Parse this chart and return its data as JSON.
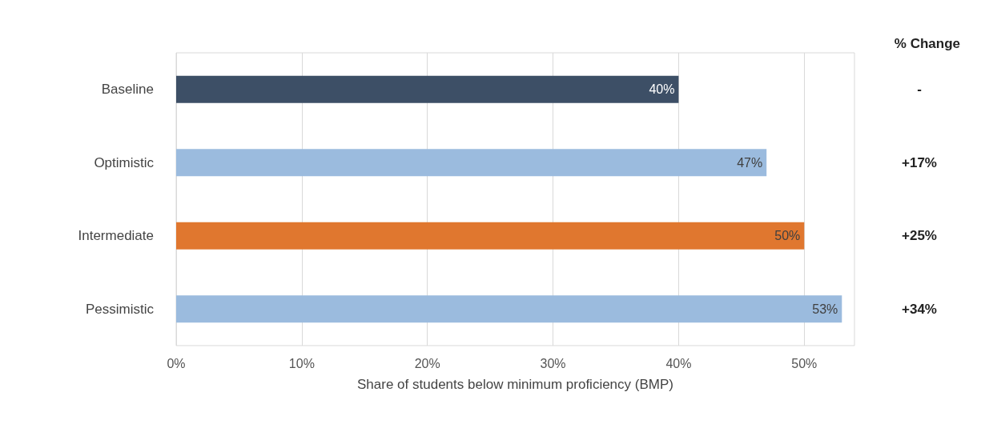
{
  "chart_data": {
    "type": "bar",
    "orientation": "horizontal",
    "categories": [
      "Baseline",
      "Optimistic",
      "Intermediate",
      "Pessimistic"
    ],
    "values": [
      40,
      47,
      50,
      53
    ],
    "colors": [
      "#3d4f66",
      "#9bbbde",
      "#e0772f",
      "#9bbbde"
    ],
    "value_labels": [
      "40%",
      "47%",
      "50%",
      "53%"
    ],
    "xlabel": "Share of students below minimum proficiency (BMP)",
    "xlim": [
      0,
      54
    ],
    "xticks": [
      {
        "value": 0,
        "label": "0%"
      },
      {
        "value": 10,
        "label": "10%"
      },
      {
        "value": 20,
        "label": "20%"
      },
      {
        "value": 30,
        "label": "30%"
      },
      {
        "value": 40,
        "label": "40%"
      },
      {
        "value": 50,
        "label": "50%"
      }
    ],
    "grid": "x",
    "annotations": [
      "% Change",
      "-",
      "+17%",
      "+25%",
      "+34%"
    ]
  }
}
